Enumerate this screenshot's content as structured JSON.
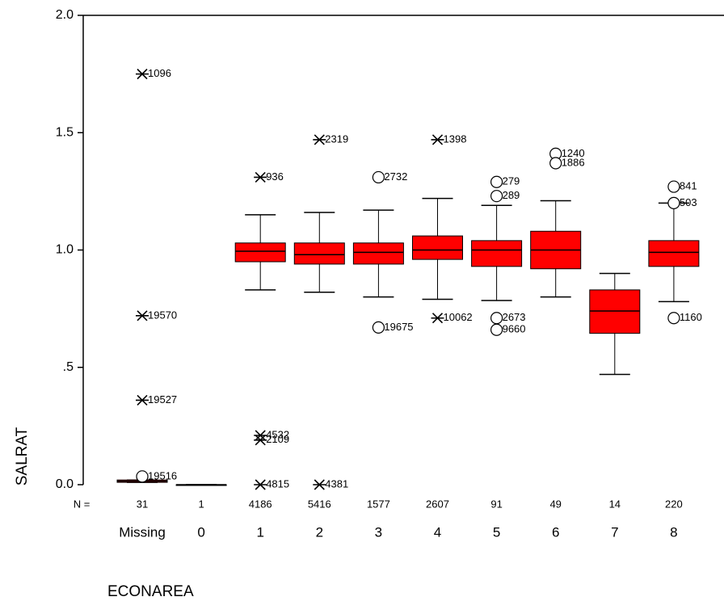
{
  "chart_data": {
    "type": "boxplot",
    "x_label": "ECONAREA",
    "y_label": "SALRAT",
    "n_label": "N =",
    "ylim": [
      0,
      2
    ],
    "yticks": [
      {
        "value": 0,
        "label": "0.0"
      },
      {
        "value": 0.5,
        "label": ".5"
      },
      {
        "value": 1,
        "label": "1.0"
      },
      {
        "value": 1.5,
        "label": "1.5"
      },
      {
        "value": 2,
        "label": "2.0"
      }
    ],
    "box_color": "#ff0000",
    "boxes": [
      {
        "category": "Missing",
        "n": 31,
        "q1": 0.01,
        "median": 0.015,
        "q3": 0.02,
        "whisker_low": 0.01,
        "whisker_high": 0.02,
        "outliers": [
          {
            "value": 1.75,
            "label": "1096",
            "marker": "star"
          },
          {
            "value": 0.72,
            "label": "19570",
            "marker": "star"
          },
          {
            "value": 0.36,
            "label": "19527",
            "marker": "star"
          },
          {
            "value": 0.035,
            "label": "19516",
            "marker": "circle"
          }
        ]
      },
      {
        "category": "0",
        "n": 1,
        "q1": 0,
        "median": 0,
        "q3": 0,
        "whisker_low": 0,
        "whisker_high": 0,
        "outliers": []
      },
      {
        "category": "1",
        "n": 4186,
        "q1": 0.95,
        "median": 0.995,
        "q3": 1.03,
        "whisker_low": 0.83,
        "whisker_high": 1.15,
        "outliers": [
          {
            "value": 1.31,
            "label": "936",
            "marker": "star"
          },
          {
            "value": 0.21,
            "label": "4532",
            "marker": "star"
          },
          {
            "value": 0.19,
            "label": "2109",
            "marker": "star"
          },
          {
            "value": 0,
            "label": "4815",
            "marker": "star"
          }
        ]
      },
      {
        "category": "2",
        "n": 5416,
        "q1": 0.94,
        "median": 0.98,
        "q3": 1.03,
        "whisker_low": 0.82,
        "whisker_high": 1.16,
        "outliers": [
          {
            "value": 1.47,
            "label": "2319",
            "marker": "star"
          },
          {
            "value": 0,
            "label": "4381",
            "marker": "star"
          }
        ]
      },
      {
        "category": "3",
        "n": 1577,
        "q1": 0.94,
        "median": 0.99,
        "q3": 1.03,
        "whisker_low": 0.8,
        "whisker_high": 1.17,
        "outliers": [
          {
            "value": 1.31,
            "label": "2732",
            "marker": "circle"
          },
          {
            "value": 0.67,
            "label": "19675",
            "marker": "circle"
          }
        ]
      },
      {
        "category": "4",
        "n": 2607,
        "q1": 0.96,
        "median": 1.0,
        "q3": 1.06,
        "whisker_low": 0.79,
        "whisker_high": 1.22,
        "outliers": [
          {
            "value": 1.47,
            "label": "1398",
            "marker": "star"
          },
          {
            "value": 0.71,
            "label": "10062",
            "marker": "star"
          }
        ]
      },
      {
        "category": "5",
        "n": 91,
        "q1": 0.93,
        "median": 1.0,
        "q3": 1.04,
        "whisker_low": 0.785,
        "whisker_high": 1.19,
        "outliers": [
          {
            "value": 1.29,
            "label": "279",
            "marker": "circle"
          },
          {
            "value": 1.23,
            "label": "289",
            "marker": "circle"
          },
          {
            "value": 0.71,
            "label": "2673",
            "marker": "circle"
          },
          {
            "value": 0.66,
            "label": "9660",
            "marker": "circle"
          }
        ]
      },
      {
        "category": "6",
        "n": 49,
        "q1": 0.92,
        "median": 1.0,
        "q3": 1.08,
        "whisker_low": 0.8,
        "whisker_high": 1.21,
        "outliers": [
          {
            "value": 1.41,
            "label": "1240",
            "marker": "circle"
          },
          {
            "value": 1.37,
            "label": "1886",
            "marker": "circle"
          }
        ]
      },
      {
        "category": "7",
        "n": 14,
        "q1": 0.645,
        "median": 0.74,
        "q3": 0.83,
        "whisker_low": 0.47,
        "whisker_high": 0.9,
        "outliers": []
      },
      {
        "category": "8",
        "n": 220,
        "q1": 0.93,
        "median": 0.99,
        "q3": 1.04,
        "whisker_low": 0.78,
        "whisker_high": 1.2,
        "outliers": [
          {
            "value": 1.27,
            "label": "841",
            "marker": "circle"
          },
          {
            "value": 1.2,
            "label": "503",
            "marker": "circle"
          },
          {
            "value": 0.71,
            "label": "1160",
            "marker": "circle"
          }
        ]
      }
    ]
  }
}
